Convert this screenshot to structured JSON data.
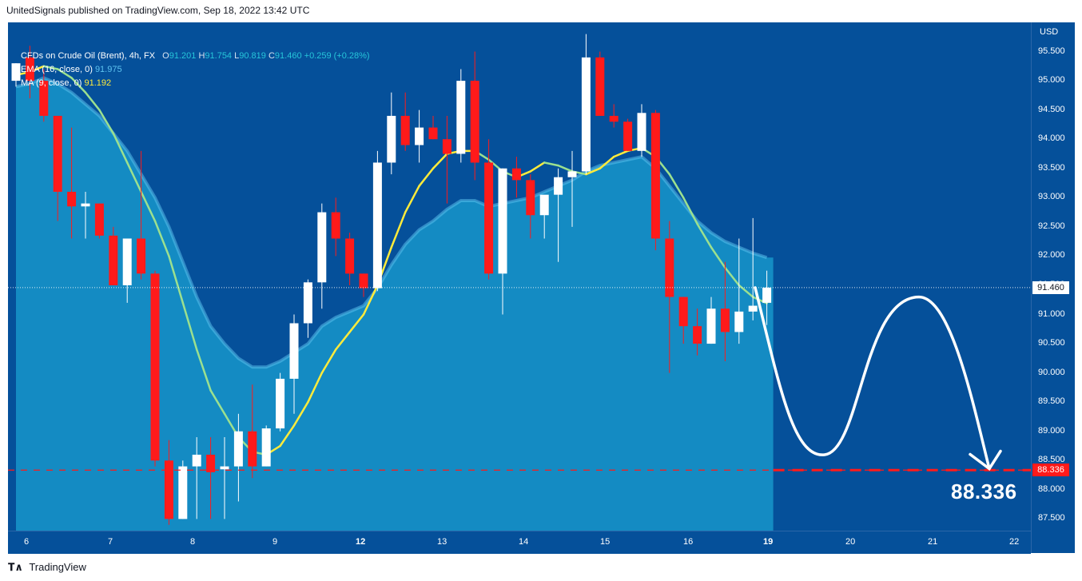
{
  "publish": {
    "text": "UnitedSignals published on TradingView.com, Sep 18, 2022 13:42 UTC"
  },
  "legend": {
    "symbol": "CFDs on Crude Oil (Brent), 4h, FX",
    "ohlc": {
      "o_key": "O",
      "o": "91.201",
      "h_key": "H",
      "h": "91.754",
      "l_key": "L",
      "l": "90.819",
      "c_key": "C",
      "c": "91.460",
      "chg": "+0.259 (+0.28%)"
    },
    "ema": {
      "label": "EMA (16, close, 0)",
      "value": "91.975"
    },
    "ma": {
      "label": "MA (9, close, 0)",
      "value": "91.192"
    }
  },
  "axis": {
    "currency": "USD",
    "price_ticks": [
      "95.500",
      "95.000",
      "94.500",
      "94.000",
      "93.500",
      "93.000",
      "92.500",
      "92.000",
      "91.500",
      "91.000",
      "90.500",
      "90.000",
      "89.500",
      "89.000",
      "88.500",
      "88.000",
      "87.500"
    ],
    "time_ticks": [
      "6",
      "7",
      "8",
      "9",
      "12",
      "13",
      "14",
      "15",
      "16",
      "19",
      "20",
      "21",
      "22"
    ],
    "bold_time_ticks": [
      "12",
      "19"
    ]
  },
  "markers": {
    "last_price": "91.460",
    "target_price": "88.336",
    "target_label": "88.336"
  },
  "colors": {
    "background": "#05509a",
    "up_candle": "#ffffff",
    "down_candle": "#ff1a1a",
    "ema_fill": "#1a9fd0",
    "ema_line": "#5ec3f0",
    "ma_line_up": "#ffeb3b",
    "ma_line_down": "#9be08f",
    "target_line": "#ff1a1a",
    "projection": "#ffffff"
  },
  "footer": {
    "brand": "TradingView",
    "logo_icon": "tradingview-logo-icon"
  },
  "chart_data": {
    "type": "candlestick",
    "title": "CFDs on Crude Oil (Brent), 4h, FX",
    "ylabel": "USD",
    "ylim": [
      87.3,
      96.0
    ],
    "x_ticks": [
      "6",
      "7",
      "8",
      "9",
      "12",
      "13",
      "14",
      "15",
      "16",
      "19",
      "20",
      "21",
      "22"
    ],
    "grid": false,
    "legend_position": "top-left",
    "candles": [
      {
        "o": 95.0,
        "h": 95.3,
        "l": 94.9,
        "c": 95.3
      },
      {
        "o": 95.4,
        "h": 95.6,
        "l": 94.7,
        "c": 95.0
      },
      {
        "o": 95.0,
        "h": 95.2,
        "l": 94.3,
        "c": 94.4
      },
      {
        "o": 94.4,
        "h": 94.4,
        "l": 92.6,
        "c": 93.1
      },
      {
        "o": 93.1,
        "h": 94.2,
        "l": 92.3,
        "c": 92.85
      },
      {
        "o": 92.85,
        "h": 93.1,
        "l": 92.3,
        "c": 92.9
      },
      {
        "o": 92.9,
        "h": 92.9,
        "l": 92.3,
        "c": 92.35
      },
      {
        "o": 92.35,
        "h": 92.5,
        "l": 91.5,
        "c": 91.5
      },
      {
        "o": 91.5,
        "h": 92.3,
        "l": 91.2,
        "c": 92.3
      },
      {
        "o": 92.3,
        "h": 93.8,
        "l": 91.6,
        "c": 91.7
      },
      {
        "o": 91.7,
        "h": 91.75,
        "l": 88.4,
        "c": 88.5
      },
      {
        "o": 88.5,
        "h": 88.85,
        "l": 87.4,
        "c": 87.5
      },
      {
        "o": 87.5,
        "h": 88.5,
        "l": 87.5,
        "c": 88.4
      },
      {
        "o": 88.4,
        "h": 88.9,
        "l": 87.5,
        "c": 88.6
      },
      {
        "o": 88.6,
        "h": 88.9,
        "l": 87.5,
        "c": 88.3
      },
      {
        "o": 88.35,
        "h": 88.9,
        "l": 87.5,
        "c": 88.4
      },
      {
        "o": 88.4,
        "h": 89.3,
        "l": 87.8,
        "c": 89.0
      },
      {
        "o": 89.0,
        "h": 89.8,
        "l": 88.2,
        "c": 88.4
      },
      {
        "o": 88.4,
        "h": 89.1,
        "l": 88.4,
        "c": 89.05
      },
      {
        "o": 89.05,
        "h": 90.0,
        "l": 89.0,
        "c": 89.9
      },
      {
        "o": 89.9,
        "h": 91.0,
        "l": 89.3,
        "c": 90.85
      },
      {
        "o": 90.85,
        "h": 91.6,
        "l": 90.6,
        "c": 91.55
      },
      {
        "o": 91.55,
        "h": 92.9,
        "l": 91.1,
        "c": 92.75
      },
      {
        "o": 92.75,
        "h": 93.0,
        "l": 92.0,
        "c": 92.3
      },
      {
        "o": 92.3,
        "h": 92.4,
        "l": 91.5,
        "c": 91.7
      },
      {
        "o": 91.7,
        "h": 91.7,
        "l": 91.3,
        "c": 91.45
      },
      {
        "o": 91.45,
        "h": 93.8,
        "l": 91.4,
        "c": 93.6
      },
      {
        "o": 93.6,
        "h": 94.8,
        "l": 93.4,
        "c": 94.4
      },
      {
        "o": 94.4,
        "h": 94.8,
        "l": 93.8,
        "c": 93.9
      },
      {
        "o": 93.9,
        "h": 94.5,
        "l": 93.6,
        "c": 94.2
      },
      {
        "o": 94.2,
        "h": 94.4,
        "l": 94.0,
        "c": 94.0
      },
      {
        "o": 94.0,
        "h": 94.4,
        "l": 92.9,
        "c": 93.75
      },
      {
        "o": 93.75,
        "h": 95.2,
        "l": 93.6,
        "c": 95.0
      },
      {
        "o": 95.0,
        "h": 95.5,
        "l": 93.3,
        "c": 93.6
      },
      {
        "o": 93.6,
        "h": 94.0,
        "l": 91.6,
        "c": 91.7
      },
      {
        "o": 91.7,
        "h": 93.5,
        "l": 91.0,
        "c": 93.5
      },
      {
        "o": 93.5,
        "h": 93.7,
        "l": 93.0,
        "c": 93.3
      },
      {
        "o": 93.3,
        "h": 93.4,
        "l": 92.3,
        "c": 92.7
      },
      {
        "o": 92.7,
        "h": 93.0,
        "l": 92.3,
        "c": 93.05
      },
      {
        "o": 93.05,
        "h": 93.5,
        "l": 91.9,
        "c": 93.35
      },
      {
        "o": 93.35,
        "h": 93.8,
        "l": 92.5,
        "c": 93.45
      },
      {
        "o": 93.45,
        "h": 95.8,
        "l": 93.4,
        "c": 95.4
      },
      {
        "o": 95.4,
        "h": 95.5,
        "l": 94.4,
        "c": 94.4
      },
      {
        "o": 94.4,
        "h": 94.6,
        "l": 94.2,
        "c": 94.3
      },
      {
        "o": 94.3,
        "h": 94.35,
        "l": 93.8,
        "c": 93.8
      },
      {
        "o": 93.8,
        "h": 94.6,
        "l": 93.7,
        "c": 94.45
      },
      {
        "o": 94.45,
        "h": 94.5,
        "l": 92.1,
        "c": 92.3
      },
      {
        "o": 92.3,
        "h": 92.6,
        "l": 90.0,
        "c": 91.3
      },
      {
        "o": 91.3,
        "h": 91.3,
        "l": 90.5,
        "c": 90.8
      },
      {
        "o": 90.8,
        "h": 91.1,
        "l": 90.3,
        "c": 90.5
      },
      {
        "o": 90.5,
        "h": 91.3,
        "l": 90.5,
        "c": 91.1
      },
      {
        "o": 91.1,
        "h": 91.9,
        "l": 90.2,
        "c": 90.7
      },
      {
        "o": 90.7,
        "h": 92.3,
        "l": 90.5,
        "c": 91.05
      },
      {
        "o": 91.05,
        "h": 92.65,
        "l": 90.9,
        "c": 91.15
      },
      {
        "o": 91.2,
        "h": 91.75,
        "l": 90.82,
        "c": 91.46
      }
    ],
    "ema": [
      94.9,
      94.95,
      95.05,
      94.95,
      94.8,
      94.6,
      94.4,
      94.1,
      93.8,
      93.4,
      93.0,
      92.5,
      91.9,
      91.3,
      90.8,
      90.5,
      90.25,
      90.1,
      90.1,
      90.2,
      90.35,
      90.5,
      90.8,
      90.95,
      91.05,
      91.15,
      91.45,
      91.85,
      92.2,
      92.45,
      92.6,
      92.8,
      92.95,
      92.95,
      92.85,
      92.9,
      92.95,
      93.0,
      93.1,
      93.2,
      93.3,
      93.45,
      93.55,
      93.6,
      93.65,
      93.7,
      93.5,
      93.2,
      92.9,
      92.6,
      92.4,
      92.25,
      92.15,
      92.05,
      91.975
    ],
    "ma": [
      95.1,
      95.15,
      95.25,
      95.2,
      95.05,
      94.8,
      94.5,
      94.1,
      93.6,
      93.1,
      92.6,
      92.0,
      91.2,
      90.4,
      89.7,
      89.3,
      88.9,
      88.65,
      88.6,
      88.75,
      89.1,
      89.5,
      90.0,
      90.4,
      90.7,
      91.0,
      91.5,
      92.15,
      92.75,
      93.2,
      93.5,
      93.75,
      93.8,
      93.8,
      93.65,
      93.45,
      93.35,
      93.45,
      93.6,
      93.55,
      93.45,
      93.4,
      93.5,
      93.7,
      93.8,
      93.85,
      93.7,
      93.4,
      93.0,
      92.55,
      92.15,
      91.8,
      91.5,
      91.3,
      91.192
    ],
    "projection": [
      {
        "x": "19 (start)",
        "y": 91.46
      },
      {
        "x": "20",
        "y": 88.6
      },
      {
        "x": "21",
        "y": 91.3
      },
      {
        "x": "22",
        "y": 88.336
      }
    ],
    "horizontal_lines": [
      {
        "label": "target",
        "y": 88.336,
        "style": "dashed"
      },
      {
        "label": "last",
        "y": 91.46,
        "style": "dotted"
      }
    ]
  }
}
